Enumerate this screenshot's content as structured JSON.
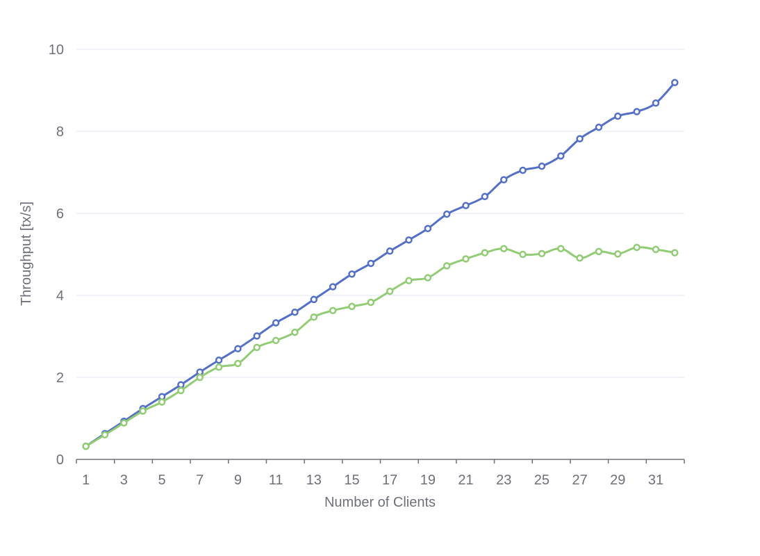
{
  "chart_data": {
    "type": "line",
    "title": "",
    "xlabel": "Number of Clients",
    "ylabel": "Throughput [tx/s]",
    "x": [
      1,
      2,
      3,
      4,
      5,
      6,
      7,
      8,
      9,
      10,
      11,
      12,
      13,
      14,
      15,
      16,
      17,
      18,
      19,
      20,
      21,
      22,
      23,
      24,
      25,
      26,
      27,
      28,
      29,
      30,
      31,
      32
    ],
    "x_tick_labels": [
      "1",
      "3",
      "5",
      "7",
      "9",
      "11",
      "13",
      "15",
      "17",
      "19",
      "21",
      "23",
      "25",
      "27",
      "29",
      "31"
    ],
    "ylim": [
      0,
      10
    ],
    "y_ticks": [
      0,
      2,
      4,
      6,
      8,
      10
    ],
    "grid": "horizontal",
    "legend": "none",
    "series": [
      {
        "color": "#5470c6",
        "values": [
          0.32,
          0.63,
          0.93,
          1.24,
          1.53,
          1.82,
          2.13,
          2.42,
          2.7,
          3.01,
          3.33,
          3.59,
          3.9,
          4.21,
          4.52,
          4.78,
          5.08,
          5.35,
          5.63,
          5.98,
          6.19,
          6.41,
          6.82,
          7.05,
          7.15,
          7.4,
          7.82,
          8.1,
          8.37,
          8.48,
          8.69,
          9.19
        ]
      },
      {
        "color": "#91cc75",
        "values": [
          0.32,
          0.6,
          0.89,
          1.18,
          1.4,
          1.68,
          2.0,
          2.25,
          2.34,
          2.73,
          2.9,
          3.1,
          3.47,
          3.63,
          3.73,
          3.83,
          4.1,
          4.36,
          4.43,
          4.72,
          4.89,
          5.04,
          5.14,
          5.0,
          5.02,
          5.14,
          4.91,
          5.07,
          5.01,
          5.17,
          5.12,
          5.04
        ]
      }
    ]
  }
}
